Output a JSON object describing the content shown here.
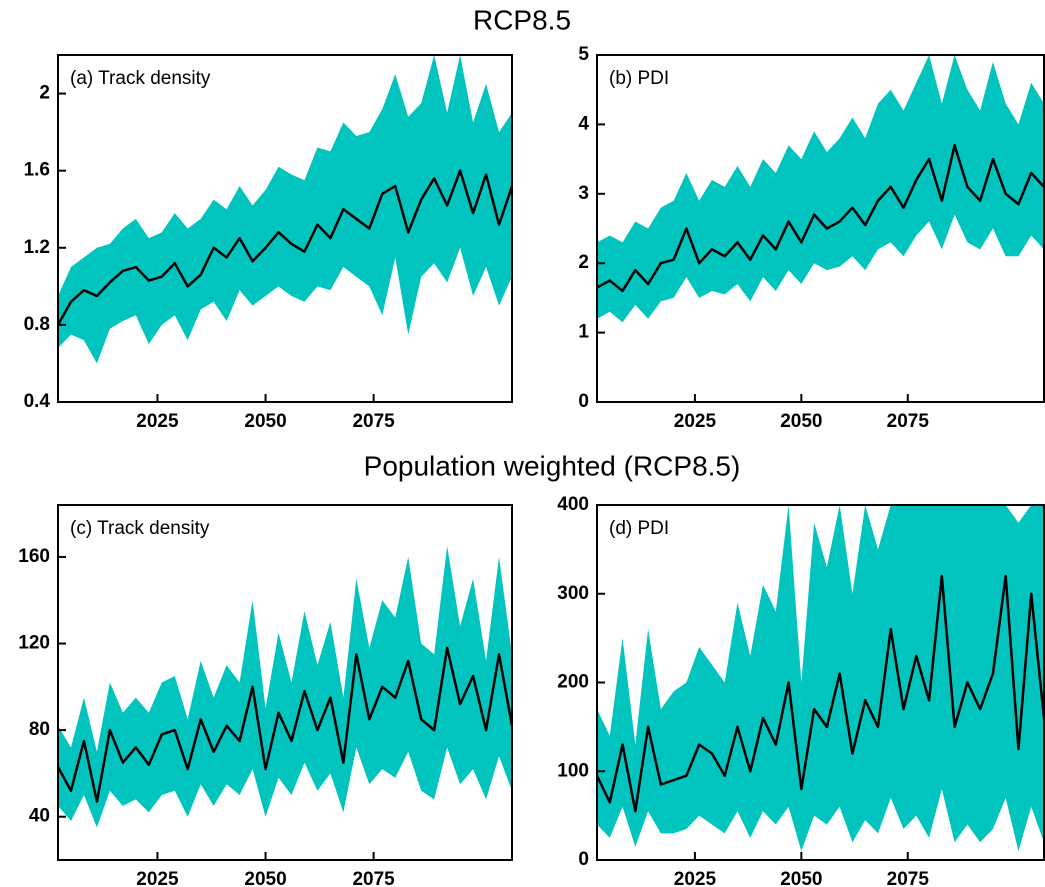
{
  "title": "RCP8.5",
  "subtitle": "Population weighted (RCP8.5)",
  "chart_data": [
    {
      "type": "band-line",
      "label": "(a) Track density",
      "color": "#000000",
      "band_color": "#00c4bd",
      "x": [
        2002,
        2005,
        2008,
        2011,
        2014,
        2017,
        2020,
        2023,
        2026,
        2029,
        2032,
        2035,
        2038,
        2041,
        2044,
        2047,
        2050,
        2053,
        2056,
        2059,
        2062,
        2065,
        2068,
        2071,
        2074,
        2077,
        2080,
        2083,
        2086,
        2089,
        2092,
        2095,
        2098,
        2101,
        2104,
        2107
      ],
      "values": [
        0.8,
        0.92,
        0.98,
        0.95,
        1.02,
        1.08,
        1.1,
        1.03,
        1.05,
        1.12,
        1.0,
        1.06,
        1.2,
        1.15,
        1.25,
        1.13,
        1.2,
        1.28,
        1.22,
        1.18,
        1.32,
        1.25,
        1.4,
        1.35,
        1.3,
        1.48,
        1.52,
        1.28,
        1.45,
        1.56,
        1.42,
        1.6,
        1.38,
        1.58,
        1.32,
        1.52
      ],
      "lower": [
        0.68,
        0.75,
        0.72,
        0.6,
        0.78,
        0.82,
        0.85,
        0.7,
        0.8,
        0.85,
        0.72,
        0.88,
        0.92,
        0.82,
        0.98,
        0.9,
        0.95,
        1.0,
        0.95,
        0.92,
        1.0,
        0.98,
        1.1,
        1.05,
        1.0,
        0.85,
        1.15,
        0.75,
        1.05,
        1.12,
        1.02,
        1.2,
        0.95,
        1.1,
        0.9,
        1.05
      ],
      "upper": [
        0.95,
        1.1,
        1.15,
        1.2,
        1.22,
        1.3,
        1.35,
        1.25,
        1.28,
        1.38,
        1.3,
        1.35,
        1.45,
        1.4,
        1.52,
        1.42,
        1.5,
        1.62,
        1.58,
        1.55,
        1.72,
        1.7,
        1.85,
        1.78,
        1.8,
        1.92,
        2.1,
        1.88,
        1.95,
        2.2,
        1.9,
        2.2,
        1.85,
        2.05,
        1.8,
        1.9
      ],
      "xlim": [
        2002,
        2107
      ],
      "xticks": [
        2025,
        2050,
        2075
      ],
      "ylim": [
        0.4,
        2.2
      ],
      "yticks": [
        0.4,
        0.8,
        1.2,
        1.6,
        2
      ]
    },
    {
      "type": "band-line",
      "label": "(b) PDI",
      "color": "#000000",
      "band_color": "#00c4bd",
      "x": [
        2002,
        2005,
        2008,
        2011,
        2014,
        2017,
        2020,
        2023,
        2026,
        2029,
        2032,
        2035,
        2038,
        2041,
        2044,
        2047,
        2050,
        2053,
        2056,
        2059,
        2062,
        2065,
        2068,
        2071,
        2074,
        2077,
        2080,
        2083,
        2086,
        2089,
        2092,
        2095,
        2098,
        2101,
        2104,
        2107
      ],
      "values": [
        1.65,
        1.75,
        1.6,
        1.9,
        1.7,
        2.0,
        2.05,
        2.5,
        2.0,
        2.2,
        2.1,
        2.3,
        2.05,
        2.4,
        2.2,
        2.6,
        2.3,
        2.7,
        2.5,
        2.6,
        2.8,
        2.55,
        2.9,
        3.1,
        2.8,
        3.2,
        3.5,
        2.9,
        3.7,
        3.1,
        2.9,
        3.5,
        3.0,
        2.85,
        3.3,
        3.1
      ],
      "lower": [
        1.2,
        1.3,
        1.15,
        1.4,
        1.2,
        1.45,
        1.5,
        1.8,
        1.5,
        1.6,
        1.55,
        1.7,
        1.45,
        1.8,
        1.6,
        1.9,
        1.7,
        2.0,
        1.9,
        1.95,
        2.1,
        1.9,
        2.2,
        2.3,
        2.1,
        2.4,
        2.6,
        2.2,
        2.7,
        2.3,
        2.2,
        2.5,
        2.1,
        2.1,
        2.4,
        2.2
      ],
      "upper": [
        2.3,
        2.4,
        2.3,
        2.6,
        2.5,
        2.8,
        2.9,
        3.3,
        2.9,
        3.2,
        3.1,
        3.4,
        3.1,
        3.5,
        3.3,
        3.7,
        3.5,
        3.9,
        3.6,
        3.8,
        4.1,
        3.8,
        4.3,
        4.5,
        4.2,
        4.6,
        5.0,
        4.3,
        5.0,
        4.5,
        4.2,
        4.9,
        4.3,
        4.0,
        4.6,
        4.3
      ],
      "xlim": [
        2002,
        2107
      ],
      "xticks": [
        2025,
        2050,
        2075
      ],
      "ylim": [
        0,
        5
      ],
      "yticks": [
        0,
        1,
        2,
        3,
        4,
        5
      ]
    },
    {
      "type": "band-line",
      "label": "(c) Track density",
      "color": "#000000",
      "band_color": "#00c4bd",
      "x": [
        2002,
        2005,
        2008,
        2011,
        2014,
        2017,
        2020,
        2023,
        2026,
        2029,
        2032,
        2035,
        2038,
        2041,
        2044,
        2047,
        2050,
        2053,
        2056,
        2059,
        2062,
        2065,
        2068,
        2071,
        2074,
        2077,
        2080,
        2083,
        2086,
        2089,
        2092,
        2095,
        2098,
        2101,
        2104,
        2107
      ],
      "values": [
        63,
        52,
        75,
        47,
        80,
        65,
        72,
        64,
        78,
        80,
        62,
        85,
        70,
        82,
        75,
        100,
        62,
        88,
        75,
        98,
        80,
        95,
        65,
        115,
        85,
        100,
        95,
        112,
        85,
        80,
        118,
        92,
        105,
        80,
        115,
        82
      ],
      "lower": [
        45,
        38,
        50,
        35,
        52,
        45,
        48,
        42,
        50,
        52,
        40,
        55,
        45,
        55,
        50,
        62,
        40,
        58,
        50,
        65,
        52,
        60,
        42,
        72,
        55,
        62,
        58,
        70,
        52,
        48,
        72,
        55,
        62,
        48,
        68,
        52
      ],
      "upper": [
        82,
        72,
        95,
        70,
        102,
        88,
        95,
        88,
        102,
        105,
        85,
        112,
        95,
        110,
        102,
        140,
        90,
        125,
        102,
        135,
        110,
        130,
        95,
        150,
        118,
        140,
        132,
        160,
        120,
        115,
        165,
        128,
        150,
        112,
        160,
        115
      ],
      "xlim": [
        2002,
        2107
      ],
      "xticks": [
        2025,
        2050,
        2075
      ],
      "ylim": [
        20,
        184
      ],
      "yticks": [
        40,
        80,
        120,
        160
      ]
    },
    {
      "type": "band-line",
      "label": "(d) PDI",
      "color": "#000000",
      "band_color": "#00c4bd",
      "x": [
        2002,
        2005,
        2008,
        2011,
        2014,
        2017,
        2020,
        2023,
        2026,
        2029,
        2032,
        2035,
        2038,
        2041,
        2044,
        2047,
        2050,
        2053,
        2056,
        2059,
        2062,
        2065,
        2068,
        2071,
        2074,
        2077,
        2080,
        2083,
        2086,
        2089,
        2092,
        2095,
        2098,
        2101,
        2104,
        2107
      ],
      "values": [
        95,
        65,
        130,
        55,
        150,
        85,
        90,
        95,
        130,
        120,
        95,
        150,
        100,
        160,
        130,
        200,
        80,
        170,
        150,
        210,
        120,
        180,
        150,
        260,
        170,
        230,
        180,
        320,
        150,
        200,
        170,
        210,
        320,
        125,
        300,
        160
      ],
      "lower": [
        40,
        25,
        60,
        15,
        55,
        30,
        30,
        35,
        50,
        40,
        30,
        55,
        25,
        55,
        40,
        60,
        10,
        50,
        40,
        60,
        20,
        45,
        30,
        70,
        35,
        50,
        25,
        80,
        20,
        40,
        20,
        35,
        70,
        10,
        60,
        20
      ],
      "upper": [
        170,
        140,
        250,
        130,
        260,
        170,
        190,
        200,
        240,
        220,
        200,
        290,
        230,
        310,
        280,
        400,
        200,
        380,
        330,
        400,
        300,
        400,
        350,
        400,
        400,
        400,
        400,
        400,
        400,
        400,
        400,
        400,
        400,
        380,
        400,
        400
      ],
      "xlim": [
        2002,
        2107
      ],
      "xticks": [
        2025,
        2050,
        2075
      ],
      "ylim": [
        0,
        400
      ],
      "yticks": [
        0,
        100,
        200,
        300,
        400
      ]
    }
  ]
}
